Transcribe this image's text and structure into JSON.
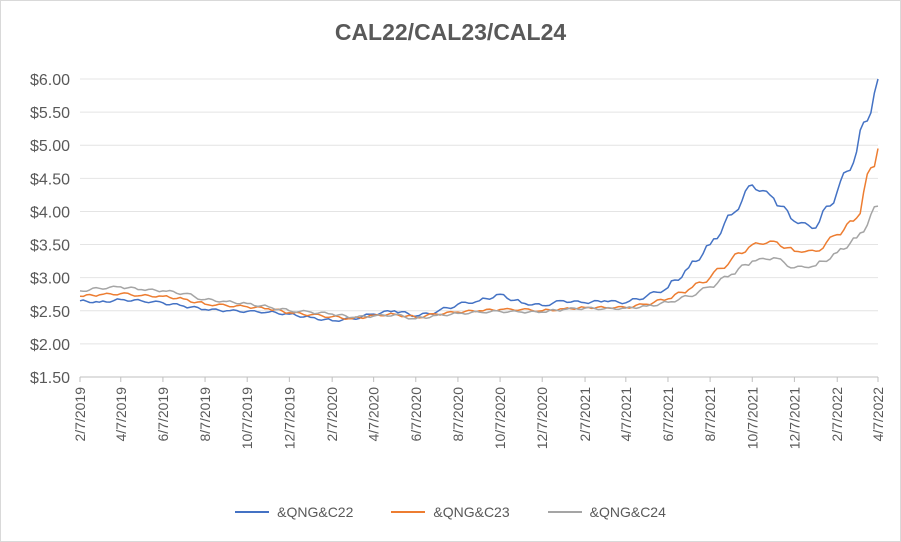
{
  "chart_data": {
    "type": "line",
    "title": "CAL22/CAL23/CAL24",
    "xlabel": "",
    "ylabel": "",
    "ylim": [
      1.5,
      6.0
    ],
    "yticks": [
      "$6.00",
      "$5.50",
      "$5.00",
      "$4.50",
      "$4.00",
      "$3.50",
      "$3.00",
      "$2.50",
      "$2.00",
      "$1.50"
    ],
    "ytick_values": [
      6.0,
      5.5,
      5.0,
      4.5,
      4.0,
      3.5,
      3.0,
      2.5,
      2.0,
      1.5
    ],
    "xticks": [
      "2/7/2019",
      "4/7/2019",
      "6/7/2019",
      "8/7/2019",
      "10/7/2019",
      "12/7/2019",
      "2/7/2020",
      "4/7/2020",
      "6/7/2020",
      "8/7/2020",
      "10/7/2020",
      "12/7/2020",
      "2/7/2021",
      "4/7/2021",
      "6/7/2021",
      "8/7/2021",
      "10/7/2021",
      "12/7/2021",
      "2/7/2022",
      "4/7/2022"
    ],
    "grid": true,
    "legend_position": "bottom",
    "series": [
      {
        "name": "&QNG&C22",
        "color": "#4472C4",
        "x": [
          "2/7/2019",
          "3/7/2019",
          "4/7/2019",
          "5/7/2019",
          "6/7/2019",
          "7/7/2019",
          "8/7/2019",
          "9/7/2019",
          "10/7/2019",
          "11/7/2019",
          "12/7/2019",
          "1/7/2020",
          "2/7/2020",
          "3/7/2020",
          "4/7/2020",
          "5/7/2020",
          "6/7/2020",
          "7/7/2020",
          "8/7/2020",
          "9/7/2020",
          "10/7/2020",
          "11/7/2020",
          "12/7/2020",
          "1/7/2021",
          "2/7/2021",
          "3/7/2021",
          "4/7/2021",
          "5/7/2021",
          "6/7/2021",
          "7/7/2021",
          "8/7/2021",
          "9/7/2021",
          "10/7/2021",
          "11/7/2021",
          "12/7/2021",
          "1/7/2022",
          "2/7/2022",
          "3/7/2022",
          "4/7/2022"
        ],
        "values": [
          2.65,
          2.63,
          2.67,
          2.65,
          2.62,
          2.57,
          2.52,
          2.5,
          2.49,
          2.48,
          2.45,
          2.4,
          2.35,
          2.38,
          2.45,
          2.5,
          2.42,
          2.48,
          2.6,
          2.65,
          2.75,
          2.62,
          2.58,
          2.65,
          2.62,
          2.65,
          2.62,
          2.72,
          2.85,
          3.15,
          3.5,
          3.95,
          4.4,
          4.2,
          3.85,
          3.75,
          4.3,
          4.9,
          6.0
        ]
      },
      {
        "name": "&QNG&C23",
        "color": "#ED7D31",
        "x": [
          "2/7/2019",
          "3/7/2019",
          "4/7/2019",
          "5/7/2019",
          "6/7/2019",
          "7/7/2019",
          "8/7/2019",
          "9/7/2019",
          "10/7/2019",
          "11/7/2019",
          "12/7/2019",
          "1/7/2020",
          "2/7/2020",
          "3/7/2020",
          "4/7/2020",
          "5/7/2020",
          "6/7/2020",
          "7/7/2020",
          "8/7/2020",
          "9/7/2020",
          "10/7/2020",
          "11/7/2020",
          "12/7/2020",
          "1/7/2021",
          "2/7/2021",
          "3/7/2021",
          "4/7/2021",
          "5/7/2021",
          "6/7/2021",
          "7/7/2021",
          "8/7/2021",
          "9/7/2021",
          "10/7/2021",
          "11/7/2021",
          "12/7/2021",
          "1/7/2022",
          "2/7/2022",
          "3/7/2022",
          "4/7/2022"
        ],
        "values": [
          2.72,
          2.74,
          2.76,
          2.73,
          2.72,
          2.68,
          2.6,
          2.58,
          2.56,
          2.53,
          2.47,
          2.44,
          2.41,
          2.38,
          2.43,
          2.45,
          2.4,
          2.45,
          2.48,
          2.5,
          2.52,
          2.52,
          2.5,
          2.53,
          2.55,
          2.55,
          2.55,
          2.6,
          2.68,
          2.82,
          3.0,
          3.28,
          3.5,
          3.55,
          3.4,
          3.4,
          3.65,
          3.9,
          4.95
        ]
      },
      {
        "name": "&QNG&C24",
        "color": "#A5A5A5",
        "x": [
          "2/7/2019",
          "3/7/2019",
          "4/7/2019",
          "5/7/2019",
          "6/7/2019",
          "7/7/2019",
          "8/7/2019",
          "9/7/2019",
          "10/7/2019",
          "11/7/2019",
          "12/7/2019",
          "1/7/2020",
          "2/7/2020",
          "3/7/2020",
          "4/7/2020",
          "5/7/2020",
          "6/7/2020",
          "7/7/2020",
          "8/7/2020",
          "9/7/2020",
          "10/7/2020",
          "11/7/2020",
          "12/7/2020",
          "1/7/2021",
          "2/7/2021",
          "3/7/2021",
          "4/7/2021",
          "5/7/2021",
          "6/7/2021",
          "7/7/2021",
          "8/7/2021",
          "9/7/2021",
          "10/7/2021",
          "11/7/2021",
          "12/7/2021",
          "1/7/2022",
          "2/7/2022",
          "3/7/2022",
          "4/7/2022"
        ],
        "values": [
          2.8,
          2.84,
          2.86,
          2.82,
          2.8,
          2.76,
          2.67,
          2.64,
          2.61,
          2.56,
          2.5,
          2.48,
          2.45,
          2.4,
          2.42,
          2.44,
          2.38,
          2.43,
          2.46,
          2.48,
          2.49,
          2.48,
          2.48,
          2.52,
          2.54,
          2.53,
          2.54,
          2.57,
          2.63,
          2.72,
          2.86,
          3.05,
          3.25,
          3.3,
          3.15,
          3.18,
          3.38,
          3.6,
          4.08
        ]
      }
    ]
  }
}
